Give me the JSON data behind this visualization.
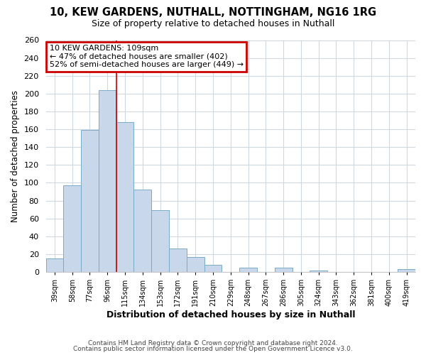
{
  "title1": "10, KEW GARDENS, NUTHALL, NOTTINGHAM, NG16 1RG",
  "title2": "Size of property relative to detached houses in Nuthall",
  "xlabel": "Distribution of detached houses by size in Nuthall",
  "ylabel": "Number of detached properties",
  "footer1": "Contains HM Land Registry data © Crown copyright and database right 2024.",
  "footer2": "Contains public sector information licensed under the Open Government Licence v3.0.",
  "bar_labels": [
    "39sqm",
    "58sqm",
    "77sqm",
    "96sqm",
    "115sqm",
    "134sqm",
    "153sqm",
    "172sqm",
    "191sqm",
    "210sqm",
    "229sqm",
    "248sqm",
    "267sqm",
    "286sqm",
    "305sqm",
    "324sqm",
    "343sqm",
    "362sqm",
    "381sqm",
    "400sqm",
    "419sqm"
  ],
  "bar_values": [
    15,
    97,
    159,
    204,
    168,
    92,
    69,
    26,
    17,
    8,
    0,
    5,
    0,
    5,
    0,
    2,
    0,
    0,
    0,
    0,
    3
  ],
  "bar_color": "#c8d8ea",
  "bar_edge_color": "#7aaac8",
  "vline_color": "#cc0000",
  "annotation_title": "10 KEW GARDENS: 109sqm",
  "annotation_line1": "← 47% of detached houses are smaller (402)",
  "annotation_line2": "52% of semi-detached houses are larger (449) →",
  "annotation_box_color": "#cc0000",
  "ylim": [
    0,
    260
  ],
  "yticks": [
    0,
    20,
    40,
    60,
    80,
    100,
    120,
    140,
    160,
    180,
    200,
    220,
    240,
    260
  ],
  "bg_color": "#ffffff",
  "plot_bg_color": "#ffffff",
  "grid_color": "#d0d8e0"
}
